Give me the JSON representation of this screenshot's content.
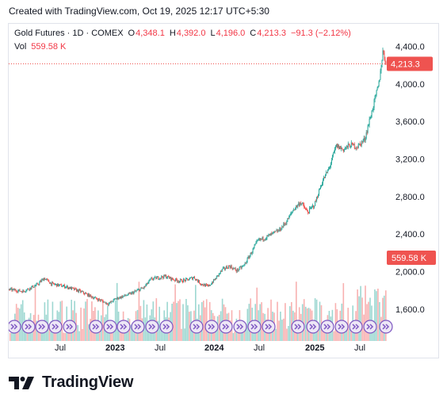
{
  "header": {
    "created_text": "Created with TradingView.com, Oct 19, 2025 12:17 UTC+5:30"
  },
  "legend": {
    "title": "Gold Futures · 1D · COMEX",
    "o_key": "O",
    "o_val": "4,348.1",
    "h_key": "H",
    "h_val": "4,392.0",
    "l_key": "L",
    "l_val": "4,196.0",
    "c_key": "C",
    "c_val": "4,213.3",
    "change": "−91.3 (−2.12%)",
    "vol_label": "Vol",
    "vol_val": "559.58 K"
  },
  "price_badge": "4,213.3",
  "vol_badge": "559.58 K",
  "footer": {
    "logo_text": "TradingView"
  },
  "colors": {
    "up": "#26a69a",
    "down": "#ef5350",
    "text": "#131722",
    "event": "#7e57c2"
  },
  "chart_data": {
    "type": "candlestick",
    "y_axis_ticks": [
      "4,400.0",
      "4,000.0",
      "3,600.0",
      "3,200.0",
      "2,800.0",
      "2,400.0",
      "2,000.0",
      "1,600.0"
    ],
    "y_ticks_values": [
      4400,
      4000,
      3600,
      3200,
      2800,
      2400,
      2000,
      1600
    ],
    "x_axis_labels": [
      "Jul",
      "2023",
      "Jul",
      "2024",
      "Jul",
      "2025",
      "Jul"
    ],
    "x_axis_bold": [
      false,
      true,
      false,
      true,
      false,
      true,
      false
    ],
    "ylim": [
      1320,
      4640
    ],
    "last_close": 4213.3,
    "last_volume": "559.58 K",
    "price_path": [
      {
        "t": 0,
        "p": 1810
      },
      {
        "t": 2,
        "p": 1790
      },
      {
        "t": 4,
        "p": 1860
      },
      {
        "t": 5,
        "p": 1930
      },
      {
        "t": 6,
        "p": 1870
      },
      {
        "t": 8,
        "p": 1840
      },
      {
        "t": 10,
        "p": 1790
      },
      {
        "t": 12,
        "p": 1720
      },
      {
        "t": 13,
        "p": 1690
      },
      {
        "t": 14,
        "p": 1655
      },
      {
        "t": 15,
        "p": 1710
      },
      {
        "t": 17,
        "p": 1760
      },
      {
        "t": 19,
        "p": 1830
      },
      {
        "t": 20,
        "p": 1920
      },
      {
        "t": 22,
        "p": 1950
      },
      {
        "t": 23,
        "p": 1920
      },
      {
        "t": 24,
        "p": 1900
      },
      {
        "t": 25,
        "p": 1910
      },
      {
        "t": 26,
        "p": 1940
      },
      {
        "t": 27,
        "p": 1870
      },
      {
        "t": 28,
        "p": 1840
      },
      {
        "t": 29,
        "p": 1920
      },
      {
        "t": 30,
        "p": 2020
      },
      {
        "t": 31,
        "p": 2060
      },
      {
        "t": 32,
        "p": 2010
      },
      {
        "t": 33,
        "p": 2060
      },
      {
        "t": 34,
        "p": 2190
      },
      {
        "t": 35,
        "p": 2330
      },
      {
        "t": 36,
        "p": 2360
      },
      {
        "t": 37,
        "p": 2400
      },
      {
        "t": 38,
        "p": 2440
      },
      {
        "t": 39,
        "p": 2530
      },
      {
        "t": 40,
        "p": 2660
      },
      {
        "t": 41,
        "p": 2740
      },
      {
        "t": 42,
        "p": 2630
      },
      {
        "t": 43,
        "p": 2720
      },
      {
        "t": 44,
        "p": 2950
      },
      {
        "t": 45,
        "p": 3100
      },
      {
        "t": 46,
        "p": 3340
      },
      {
        "t": 47,
        "p": 3300
      },
      {
        "t": 48,
        "p": 3350
      },
      {
        "t": 49,
        "p": 3330
      },
      {
        "t": 50,
        "p": 3410
      },
      {
        "t": 51,
        "p": 3700
      },
      {
        "t": 52,
        "p": 4000
      },
      {
        "t": 52.6,
        "p": 4360
      },
      {
        "t": 53,
        "p": 4213
      }
    ],
    "time_span_months": 53
  }
}
